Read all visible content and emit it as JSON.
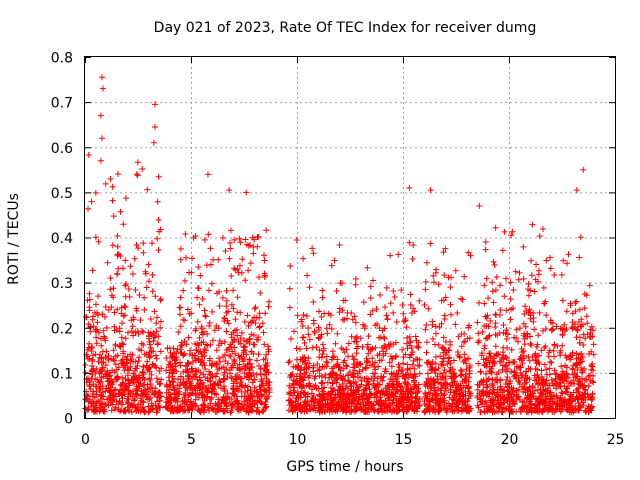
{
  "chart_data": {
    "type": "scatter",
    "title": "Day 021 of 2023, Rate Of TEC Index for receiver dumg",
    "xlabel": "GPS time / hours",
    "ylabel": "ROTI / TECUs",
    "xlim": [
      0,
      25
    ],
    "ylim": [
      0,
      0.8
    ],
    "xticks": [
      "0",
      "5",
      "10",
      "15",
      "20",
      "25"
    ],
    "yticks": [
      "0",
      "0.1",
      "0.2",
      "0.3",
      "0.4",
      "0.5",
      "0.6",
      "0.7",
      "0.8"
    ],
    "grid": true,
    "marker": "+",
    "color": "#ff0000",
    "activity_segments": [
      {
        "start": 0.0,
        "end": 3.6,
        "typical": 0.15,
        "peak": 0.75
      },
      {
        "start": 3.8,
        "end": 4.4,
        "typical": 0.1,
        "peak": 0.2
      },
      {
        "start": 4.4,
        "end": 8.7,
        "typical": 0.15,
        "peak": 0.54
      },
      {
        "start": 9.6,
        "end": 15.8,
        "typical": 0.1,
        "peak": 0.51
      },
      {
        "start": 16.0,
        "end": 18.2,
        "typical": 0.12,
        "peak": 0.5
      },
      {
        "start": 18.5,
        "end": 24.0,
        "typical": 0.12,
        "peak": 0.55
      }
    ],
    "notable_points": [
      {
        "x": 0.8,
        "y": 0.755
      },
      {
        "x": 0.85,
        "y": 0.73
      },
      {
        "x": 0.75,
        "y": 0.67
      },
      {
        "x": 0.8,
        "y": 0.62
      },
      {
        "x": 0.75,
        "y": 0.57
      },
      {
        "x": 3.3,
        "y": 0.695
      },
      {
        "x": 3.3,
        "y": 0.645
      },
      {
        "x": 3.25,
        "y": 0.61
      },
      {
        "x": 1.2,
        "y": 0.53
      },
      {
        "x": 5.8,
        "y": 0.54
      },
      {
        "x": 6.8,
        "y": 0.505
      },
      {
        "x": 7.6,
        "y": 0.5
      },
      {
        "x": 15.3,
        "y": 0.51
      },
      {
        "x": 16.3,
        "y": 0.505
      },
      {
        "x": 23.5,
        "y": 0.55
      },
      {
        "x": 23.2,
        "y": 0.505
      },
      {
        "x": 20.1,
        "y": 0.405
      },
      {
        "x": 18.6,
        "y": 0.47
      }
    ]
  }
}
